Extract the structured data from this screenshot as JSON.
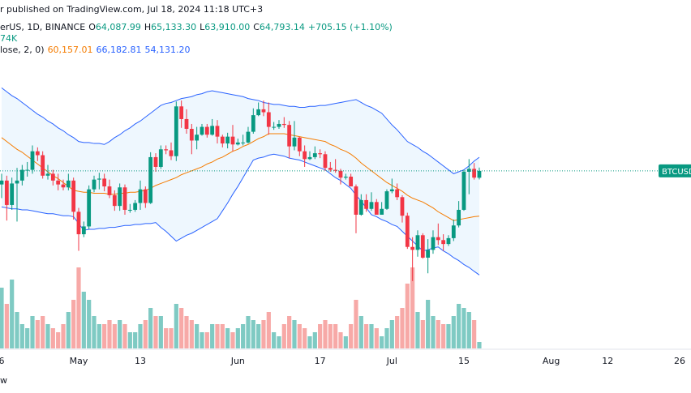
{
  "chart_data": {
    "type": "candlestick",
    "header": {
      "published": "r published on TradingView.com, Jul 18, 2024 11:18 UTC+3",
      "symbol": "erUS, 1D, BINANCE",
      "ohlc": [
        {
          "key": "O",
          "value": "64,087.99"
        },
        {
          "key": "H",
          "value": "65,133.30"
        },
        {
          "key": "L",
          "value": "63,910.00"
        },
        {
          "key": "C",
          "value": "64,793.14"
        }
      ],
      "change": "+705.15 (+1.10%)",
      "volume": "74K",
      "indicator": "lose, 2, 0)",
      "indicator_values": [
        {
          "text": "60,157.01",
          "color": "#f57c00"
        },
        {
          "text": "66,182.81",
          "color": "#2962ff"
        },
        {
          "text": "54,131.20",
          "color": "#2962ff"
        }
      ]
    },
    "price_tag": "BTCUSD",
    "footer": "w",
    "up_color": "#089981",
    "down_color": "#f23645",
    "volume_up_color": "#7fcac3",
    "volume_down_color": "#f7a9a7",
    "basis_color": "#f57c00",
    "band_color": "#2962ff",
    "band_fill": "rgba(33,150,243,0.08)",
    "ylim": [
      46600,
      82300
    ],
    "y2lim": [
      0,
      430
    ],
    "categories": [
      "6",
      null,
      null,
      null,
      null,
      null,
      null,
      null,
      null,
      null,
      null,
      null,
      null,
      null,
      null,
      "May",
      null,
      null,
      null,
      null,
      null,
      null,
      null,
      null,
      null,
      null,
      null,
      "13",
      null,
      null,
      null,
      null,
      null,
      null,
      null,
      null,
      null,
      null,
      null,
      null,
      null,
      null,
      null,
      null,
      null,
      null,
      "Jun",
      null,
      null,
      null,
      null,
      null,
      null,
      null,
      null,
      null,
      null,
      null,
      null,
      null,
      null,
      null,
      "17",
      null,
      null,
      null,
      null,
      null,
      null,
      null,
      null,
      null,
      null,
      null,
      null,
      null,
      "Jul",
      null,
      null,
      null,
      null,
      null,
      null,
      null,
      null,
      null,
      null,
      null,
      null,
      null,
      "15",
      null,
      null,
      null,
      null,
      null,
      null,
      null,
      null,
      null,
      null,
      null,
      null,
      null,
      null,
      null,
      null,
      "Aug",
      null,
      null,
      null,
      null,
      null,
      null,
      null,
      null,
      null,
      null,
      "12",
      null,
      null,
      null,
      null,
      null,
      null,
      null,
      null,
      null,
      null,
      null,
      null,
      null,
      "26",
      null
    ],
    "open": [
      63400,
      63800,
      61300,
      63500,
      63800,
      64900,
      64900,
      66800,
      66400,
      64300,
      64500,
      63800,
      63400,
      63100,
      63800,
      60600,
      58300,
      59100,
      62900,
      63900,
      64000,
      63200,
      62300,
      61200,
      63100,
      60800,
      60800,
      61500,
      62900,
      61500,
      66200,
      65200,
      67000,
      66900,
      66300,
      71400,
      70100,
      69100,
      67900,
      68500,
      69300,
      68500,
      69400,
      68300,
      67600,
      68300,
      67500,
      67700,
      67700,
      68800,
      70500,
      71100,
      70800,
      69300,
      69300,
      69600,
      69500,
      67300,
      68200,
      66800,
      66000,
      66200,
      66600,
      66500,
      65100,
      64900,
      64800,
      64100,
      64200,
      63200,
      60300,
      61800,
      60900,
      61600,
      60300,
      60900,
      62700,
      62900,
      62100,
      60200,
      57000,
      56700,
      58200,
      55900,
      56700,
      58000,
      57700,
      57300,
      57900,
      59200,
      60800,
      64700,
      65000,
      64087.99,
      null,
      null,
      null,
      null,
      null,
      null,
      null,
      null,
      null,
      null,
      null,
      null,
      null,
      null,
      null,
      null,
      null,
      null,
      null,
      null,
      null,
      null,
      null,
      null,
      null,
      null,
      null,
      null,
      null,
      null,
      null,
      null,
      null,
      null,
      null,
      null,
      null,
      null,
      null,
      null
    ],
    "high": [
      64500,
      64300,
      64100,
      65100,
      65400,
      65700,
      67400,
      67200,
      66800,
      65400,
      64900,
      64500,
      63900,
      64500,
      64100,
      61000,
      59600,
      63300,
      64300,
      64600,
      64500,
      63900,
      62800,
      63500,
      63400,
      61400,
      61800,
      63800,
      63200,
      66700,
      66600,
      67400,
      67400,
      67700,
      71900,
      72000,
      71100,
      69600,
      69300,
      69600,
      69600,
      70100,
      70000,
      68500,
      68700,
      69500,
      68100,
      68500,
      69300,
      71200,
      71800,
      72000,
      71800,
      69800,
      70000,
      70300,
      69900,
      69900,
      68300,
      67400,
      66800,
      67300,
      67000,
      66800,
      65700,
      66000,
      65000,
      64500,
      64500,
      63400,
      62400,
      62400,
      62600,
      61900,
      61600,
      62900,
      64000,
      63500,
      62300,
      60500,
      58000,
      58700,
      58400,
      57800,
      58700,
      59400,
      58300,
      58200,
      59800,
      61700,
      64900,
      66000,
      65600,
      65133.3,
      null,
      null,
      null,
      null,
      null,
      null,
      null,
      null,
      null,
      null,
      null,
      null,
      null,
      null,
      null,
      null,
      null,
      null,
      null,
      null,
      null,
      null,
      null,
      null,
      null,
      null,
      null,
      null,
      null,
      null,
      null,
      null,
      null,
      null,
      null,
      null,
      null,
      null,
      null,
      null
    ],
    "low": [
      62000,
      59700,
      60800,
      59600,
      63300,
      64200,
      64500,
      65800,
      64000,
      63900,
      63300,
      62800,
      62800,
      62800,
      59800,
      56600,
      58000,
      58800,
      62600,
      62900,
      62700,
      62000,
      60700,
      60700,
      60300,
      60500,
      60600,
      60800,
      61000,
      61400,
      64700,
      65000,
      66500,
      65900,
      65800,
      69200,
      68600,
      66500,
      67000,
      68400,
      68200,
      68400,
      67600,
      67200,
      67100,
      66800,
      67400,
      67400,
      67600,
      68600,
      70400,
      70400,
      68500,
      69000,
      69100,
      69200,
      66100,
      66900,
      66300,
      65200,
      65900,
      66000,
      66100,
      64800,
      64700,
      64600,
      63400,
      63900,
      63200,
      58400,
      60200,
      60600,
      60700,
      60300,
      60600,
      60800,
      62500,
      61800,
      59500,
      56800,
      53500,
      56000,
      55800,
      54300,
      56300,
      57200,
      56600,
      57100,
      57600,
      59000,
      60700,
      62400,
      63900,
      63910,
      null,
      null,
      null,
      null,
      null,
      null,
      null,
      null,
      null,
      null,
      null,
      null,
      null,
      null,
      null,
      null,
      null,
      null,
      null,
      null,
      null,
      null,
      null,
      null,
      null,
      null,
      null,
      null,
      null,
      null,
      null,
      null,
      null,
      null,
      null,
      null,
      null,
      null,
      null,
      null
    ],
    "close": [
      63800,
      61300,
      63500,
      63800,
      64900,
      64900,
      66800,
      66400,
      64300,
      64500,
      63800,
      63400,
      63100,
      63800,
      60600,
      58300,
      59100,
      62900,
      63900,
      64000,
      63200,
      62300,
      61200,
      63100,
      60800,
      60800,
      61500,
      62900,
      61500,
      66200,
      65200,
      67000,
      66900,
      66300,
      71400,
      70100,
      69100,
      67900,
      68500,
      69300,
      68500,
      69400,
      68300,
      67600,
      68300,
      67500,
      67700,
      67700,
      68800,
      70500,
      71100,
      70800,
      69300,
      69300,
      69600,
      69500,
      67300,
      68200,
      66800,
      66000,
      66200,
      66600,
      66500,
      65100,
      64900,
      64800,
      64100,
      64200,
      63200,
      60300,
      61800,
      60900,
      61600,
      60300,
      60900,
      62700,
      62900,
      62100,
      60200,
      57000,
      56700,
      58200,
      55900,
      56700,
      58000,
      57700,
      57300,
      57900,
      59200,
      60800,
      64700,
      65000,
      64100,
      64793.14,
      null,
      null,
      null,
      null,
      null,
      null,
      null,
      null,
      null,
      null,
      null,
      null,
      null,
      null,
      null,
      null,
      null,
      null,
      null,
      null,
      null,
      null,
      null,
      null,
      null,
      null,
      null,
      null,
      null,
      null,
      null,
      null,
      null,
      null,
      null,
      null,
      null,
      null,
      null,
      null
    ],
    "volume": [
      75,
      55,
      85,
      45,
      30,
      25,
      40,
      35,
      40,
      30,
      25,
      20,
      30,
      45,
      60,
      100,
      70,
      60,
      40,
      30,
      30,
      35,
      30,
      35,
      30,
      20,
      20,
      30,
      35,
      50,
      40,
      40,
      25,
      25,
      55,
      50,
      40,
      35,
      30,
      20,
      20,
      30,
      30,
      30,
      25,
      20,
      25,
      30,
      40,
      35,
      30,
      35,
      45,
      20,
      15,
      30,
      40,
      35,
      30,
      25,
      15,
      20,
      30,
      35,
      30,
      30,
      20,
      15,
      30,
      60,
      40,
      30,
      30,
      25,
      15,
      25,
      35,
      40,
      50,
      80,
      100,
      45,
      35,
      60,
      40,
      35,
      30,
      30,
      40,
      55,
      50,
      45,
      35,
      8,
      null,
      null,
      null,
      null,
      null,
      null,
      null,
      null,
      null,
      null,
      null,
      null,
      null,
      null,
      null,
      null,
      null,
      null,
      null,
      null,
      null,
      null,
      null,
      null,
      null,
      null,
      null,
      null,
      null,
      null,
      null,
      null,
      null,
      null,
      null,
      null,
      null,
      null,
      null,
      null
    ],
    "bb_basis": [
      68200,
      67800,
      67400,
      67000,
      66700,
      66300,
      65900,
      65500,
      65100,
      64700,
      64300,
      64000,
      63600,
      63200,
      62800,
      62700,
      62600,
      62600,
      62500,
      62500,
      62500,
      62400,
      62400,
      62500,
      62500,
      62600,
      62600,
      62700,
      62800,
      63000,
      63300,
      63500,
      63700,
      63900,
      64100,
      64400,
      64600,
      64800,
      65000,
      65200,
      65500,
      65700,
      66000,
      66200,
      66500,
      66800,
      67000,
      67300,
      67500,
      67800,
      68100,
      68300,
      68600,
      68600,
      68600,
      68600,
      68500,
      68400,
      68300,
      68200,
      68100,
      68000,
      67900,
      67800,
      67500,
      67300,
      67000,
      66800,
      66500,
      66100,
      65600,
      65200,
      64800,
      64400,
      64000,
      63600,
      63300,
      63000,
      62700,
      62300,
      62000,
      61800,
      61600,
      61300,
      61000,
      60600,
      60300,
      60000,
      59700,
      59800,
      59900,
      60000,
      60100,
      60157.01,
      null,
      null,
      null,
      null,
      null,
      null,
      null,
      null,
      null,
      null,
      null,
      null,
      null,
      null,
      null,
      null,
      null,
      null,
      null,
      null,
      null,
      null,
      null,
      null,
      null,
      null,
      null,
      null,
      null,
      null,
      null,
      null,
      null,
      null,
      null,
      null,
      null,
      null,
      null,
      null
    ],
    "bb_upper": [
      73300,
      72900,
      72500,
      72200,
      71800,
      71400,
      71000,
      70600,
      70300,
      69900,
      69600,
      69200,
      68900,
      68500,
      68200,
      67800,
      67700,
      67700,
      67600,
      67600,
      67500,
      67800,
      68200,
      68500,
      68900,
      69200,
      69600,
      69900,
      70300,
      70700,
      71100,
      71500,
      71700,
      71800,
      72000,
      72200,
      72300,
      72400,
      72600,
      72700,
      72900,
      73000,
      72900,
      72800,
      72700,
      72600,
      72500,
      72400,
      72200,
      72100,
      72000,
      71800,
      71700,
      71600,
      71600,
      71500,
      71400,
      71400,
      71300,
      71300,
      71400,
      71400,
      71500,
      71500,
      71600,
      71700,
      71800,
      71900,
      72000,
      72100,
      71800,
      71500,
      71300,
      71000,
      70700,
      70100,
      69500,
      69000,
      68400,
      67800,
      67500,
      67200,
      66800,
      66500,
      66100,
      65700,
      65300,
      64900,
      64500,
      64700,
      64900,
      65300,
      65800,
      66182.81,
      null,
      null,
      null,
      null,
      null,
      null,
      null,
      null,
      null,
      null,
      null,
      null,
      null,
      null,
      null,
      null,
      null,
      null,
      null,
      null,
      null,
      null,
      null,
      null,
      null,
      null,
      null,
      null,
      null,
      null,
      null,
      null,
      null,
      null,
      null,
      null,
      null,
      null,
      null,
      null
    ],
    "bb_lower": [
      61100,
      61000,
      60900,
      60900,
      60800,
      60800,
      60700,
      60600,
      60500,
      60400,
      60400,
      60300,
      60200,
      60200,
      60100,
      59400,
      58700,
      58800,
      58800,
      58900,
      58900,
      59000,
      59000,
      59100,
      59200,
      59200,
      59300,
      59300,
      59400,
      59400,
      59500,
      59000,
      58600,
      58100,
      57600,
      57900,
      58200,
      58400,
      58700,
      59000,
      59300,
      59600,
      59900,
      60700,
      61500,
      62400,
      63200,
      64100,
      65000,
      65900,
      66100,
      66200,
      66400,
      66500,
      66400,
      66300,
      66100,
      66000,
      65900,
      65700,
      65500,
      65300,
      65100,
      64900,
      64500,
      64100,
      63800,
      63400,
      63000,
      62300,
      61700,
      61000,
      60300,
      60100,
      59800,
      59600,
      59300,
      59100,
      58600,
      58100,
      57600,
      57100,
      56600,
      56700,
      56900,
      57000,
      56600,
      56300,
      55900,
      55600,
      55200,
      54900,
      54500,
      54131.2,
      null,
      null,
      null,
      null,
      null,
      null,
      null,
      null,
      null,
      null,
      null,
      null,
      null,
      null,
      null,
      null,
      null,
      null,
      null,
      null,
      null,
      null,
      null,
      null,
      null,
      null,
      null,
      null,
      null,
      null,
      null,
      null,
      null,
      null,
      null,
      null,
      null,
      null,
      null,
      null
    ]
  }
}
